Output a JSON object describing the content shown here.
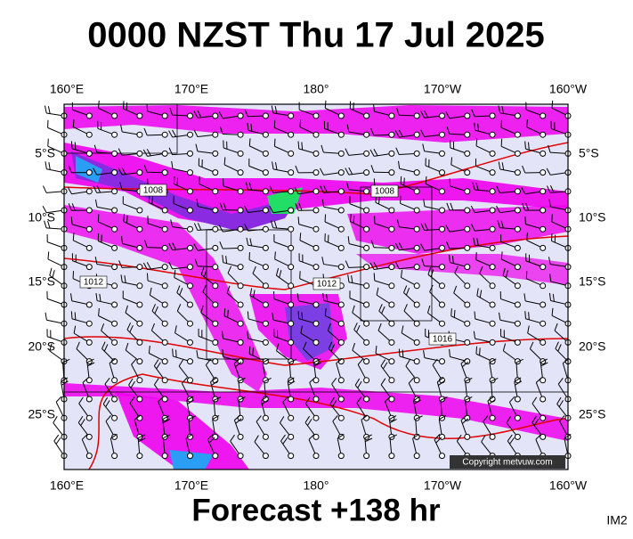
{
  "header": {
    "title": "0000 NZST Thu 17 Jul 2025"
  },
  "map": {
    "lon_labels": [
      "160°E",
      "170°E",
      "180°",
      "170°W",
      "160°W"
    ],
    "lat_labels": [
      "5°S",
      "10°S",
      "15°S",
      "20°S",
      "25°S"
    ],
    "isobar_labels": [
      "1008",
      "1008",
      "1012",
      "1012",
      "1016"
    ],
    "copyright": "Copyright metvuw.com"
  },
  "footer": {
    "forecast": "Forecast +138 hr",
    "code": "IM2"
  }
}
